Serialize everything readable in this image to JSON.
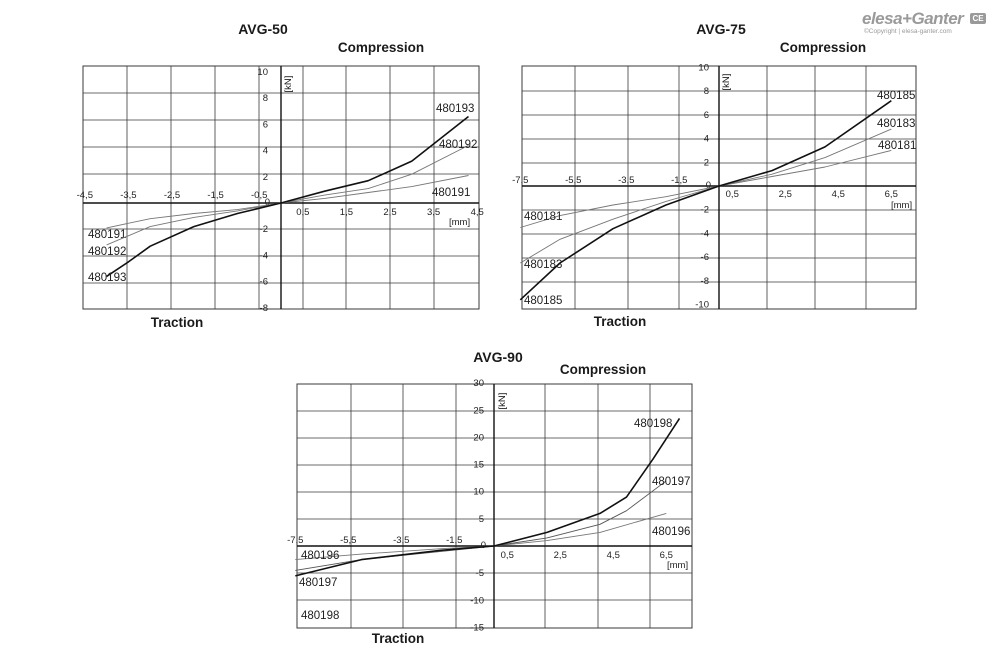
{
  "logo": {
    "brand": "elesa+Ganter",
    "ce_mark": "CE",
    "copyright": "©Copyright | elesa-ganter.com"
  },
  "chart_data": [
    {
      "type": "line",
      "title": "AVG-50",
      "top_label": "Compression",
      "bottom_label": "Traction",
      "xunit": "[mm]",
      "yunit": "[kN]",
      "xlim": [
        -4.5,
        4.5
      ],
      "ylim": [
        -8,
        10
      ],
      "grid": true,
      "xticks_left": [
        "-4,5",
        "-3,5",
        "-2,5",
        "-1,5",
        "-0,5"
      ],
      "xticks_right": [
        "0,5",
        "1,5",
        "2,5",
        "3,5",
        "4,5"
      ],
      "yticks": [
        "10",
        "8",
        "6",
        "4",
        "2",
        "0",
        "-2",
        "-4",
        "-6",
        "-8"
      ],
      "series": [
        {
          "name": "480191",
          "x": [
            -4,
            -3,
            -2,
            -1,
            0,
            1,
            2,
            3,
            4.3
          ],
          "y": [
            -1.9,
            -1.2,
            -0.8,
            -0.5,
            0,
            0.35,
            0.8,
            1.25,
            2.1
          ]
        },
        {
          "name": "480192",
          "x": [
            -4,
            -3,
            -2,
            -1,
            0,
            1,
            2,
            3,
            4.3
          ],
          "y": [
            -3.2,
            -1.8,
            -1.1,
            -0.6,
            0,
            0.6,
            1.1,
            2.2,
            4.4
          ]
        },
        {
          "name": "480193",
          "x": [
            -4,
            -3.5,
            -3,
            -2,
            -1,
            0,
            1,
            2,
            3,
            4.3
          ],
          "y": [
            -5.6,
            -4.5,
            -3.3,
            -1.8,
            -0.8,
            0,
            0.9,
            1.7,
            3.2,
            6.6
          ]
        }
      ]
    },
    {
      "type": "line",
      "title": "AVG-75",
      "top_label": "Compression",
      "bottom_label": "Traction",
      "xunit": "[mm]",
      "yunit": "[kN]",
      "xlim": [
        -7.5,
        7.5
      ],
      "ylim": [
        -10,
        10
      ],
      "grid": true,
      "xticks_left": [
        "-7,5",
        "-5,5",
        "-3,5",
        "-1,5"
      ],
      "xticks_right": [
        "0,5",
        "2,5",
        "4,5",
        "6,5"
      ],
      "yticks": [
        "10",
        "8",
        "6",
        "4",
        "2",
        "0",
        "-2",
        "-4",
        "-6",
        "-8",
        "-10"
      ],
      "series": [
        {
          "name": "480181",
          "x": [
            -7.5,
            -6,
            -4,
            -2,
            0,
            2,
            4,
            6.5
          ],
          "y": [
            -3.5,
            -2.5,
            -1.6,
            -0.9,
            0,
            0.8,
            1.6,
            3.0
          ]
        },
        {
          "name": "480183",
          "x": [
            -7.5,
            -6,
            -4,
            -2,
            0,
            2,
            4,
            6.5
          ],
          "y": [
            -6.5,
            -4.5,
            -2.8,
            -1.3,
            0,
            1.0,
            2.4,
            4.8
          ]
        },
        {
          "name": "480185",
          "x": [
            -7.5,
            -6,
            -4,
            -2,
            0,
            2,
            4,
            6.5
          ],
          "y": [
            -9.6,
            -6.5,
            -3.6,
            -1.6,
            0,
            1.3,
            3.3,
            7.2
          ]
        }
      ]
    },
    {
      "type": "line",
      "title": "AVG-90",
      "top_label": "Compression",
      "bottom_label": "Traction",
      "xunit": "[mm]",
      "yunit": "[kN]",
      "xlim": [
        -7.5,
        7.5
      ],
      "ylim": [
        -15,
        30
      ],
      "grid": true,
      "xticks_left": [
        "-7,5",
        "-5,5",
        "-3,5",
        "-1,5"
      ],
      "xticks_right": [
        "0,5",
        "2,5",
        "4,5",
        "6,5"
      ],
      "yticks": [
        "30",
        "25",
        "20",
        "15",
        "10",
        "5",
        "0",
        "-5",
        "-10",
        "-15"
      ],
      "series": [
        {
          "name": "480196",
          "x": [
            -7.5,
            -5,
            -2,
            0,
            2,
            4,
            6.5
          ],
          "y": [
            -2.5,
            -1.5,
            -0.5,
            0,
            1.0,
            2.5,
            6.0
          ]
        },
        {
          "name": "480197",
          "x": [
            -7.5,
            -5,
            -2,
            0,
            2,
            4,
            5,
            6.5
          ],
          "y": [
            -4.5,
            -2.5,
            -1.0,
            0,
            1.5,
            4.0,
            6.5,
            12.0
          ]
        },
        {
          "name": "480198",
          "x": [
            -7.5,
            -5,
            -2,
            0,
            2,
            4,
            5,
            6,
            7
          ],
          "y": [
            -5.5,
            -2.5,
            -0.8,
            0,
            2.5,
            6.0,
            9.0,
            16.0,
            23.5
          ]
        }
      ]
    }
  ]
}
